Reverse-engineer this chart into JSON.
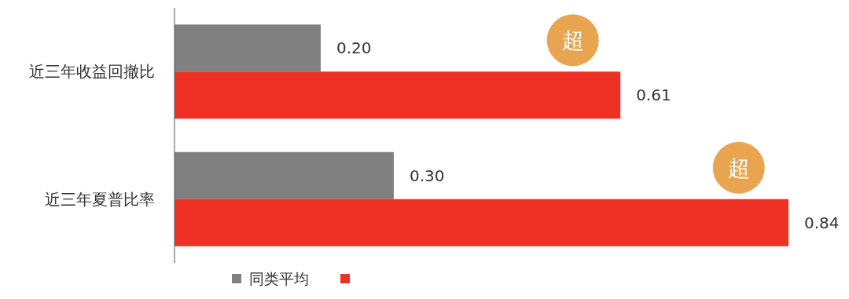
{
  "chart_data": {
    "type": "bar",
    "orientation": "horizontal",
    "categories": [
      "近三年收益回撤比",
      "近三年夏普比率"
    ],
    "series": [
      {
        "name": "同类平均",
        "color": "#808080",
        "values": [
          0.2,
          0.3
        ],
        "value_labels": [
          "0.20",
          "0.30"
        ]
      },
      {
        "color": "#ee3124",
        "values": [
          0.61,
          0.84
        ],
        "value_labels": [
          "0.61",
          "0.84"
        ]
      }
    ],
    "annotations": [
      {
        "text": "超",
        "x": 0.545,
        "y": "近三年收益回撤比"
      },
      {
        "text": "超",
        "x": 0.772,
        "y": "近三年夏普比率"
      }
    ],
    "legend": "bottom"
  }
}
